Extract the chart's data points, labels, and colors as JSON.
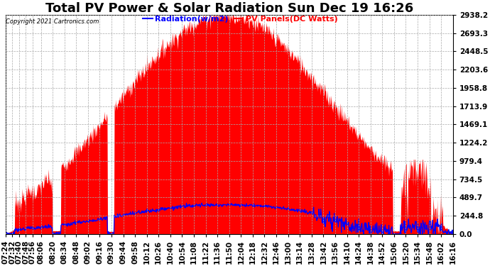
{
  "title": "Total PV Power & Solar Radiation Sun Dec 19 16:26",
  "copyright": "Copyright 2021 Cartronics.com",
  "legend_radiation": "Radiation(w/m2)",
  "legend_pv": "PV Panels(DC Watts)",
  "legend_radiation_color": "#0000ff",
  "legend_pv_color": "#ff0000",
  "background_color": "#ffffff",
  "plot_bg_color": "#ffffff",
  "fill_color": "#ff0000",
  "line_color": "#0000ff",
  "grid_color": "#aaaaaa",
  "yticks": [
    0.0,
    244.8,
    489.7,
    734.5,
    979.4,
    1224.2,
    1469.1,
    1713.9,
    1958.8,
    2203.6,
    2448.5,
    2693.3,
    2938.2
  ],
  "ymax": 2938.2,
  "ymin": 0.0,
  "title_fontsize": 13,
  "tick_fontsize": 7.5,
  "x_tick_labels": [
    "07:24",
    "07:32",
    "07:40",
    "07:48",
    "07:56",
    "08:06",
    "08:20",
    "08:34",
    "08:48",
    "09:02",
    "09:16",
    "09:30",
    "09:44",
    "09:58",
    "10:12",
    "10:26",
    "10:40",
    "10:54",
    "11:08",
    "11:22",
    "11:36",
    "11:50",
    "12:04",
    "12:18",
    "12:32",
    "12:46",
    "13:00",
    "13:14",
    "13:28",
    "13:42",
    "13:56",
    "14:10",
    "14:24",
    "14:38",
    "14:52",
    "15:06",
    "15:20",
    "15:34",
    "15:48",
    "16:02",
    "16:16"
  ]
}
